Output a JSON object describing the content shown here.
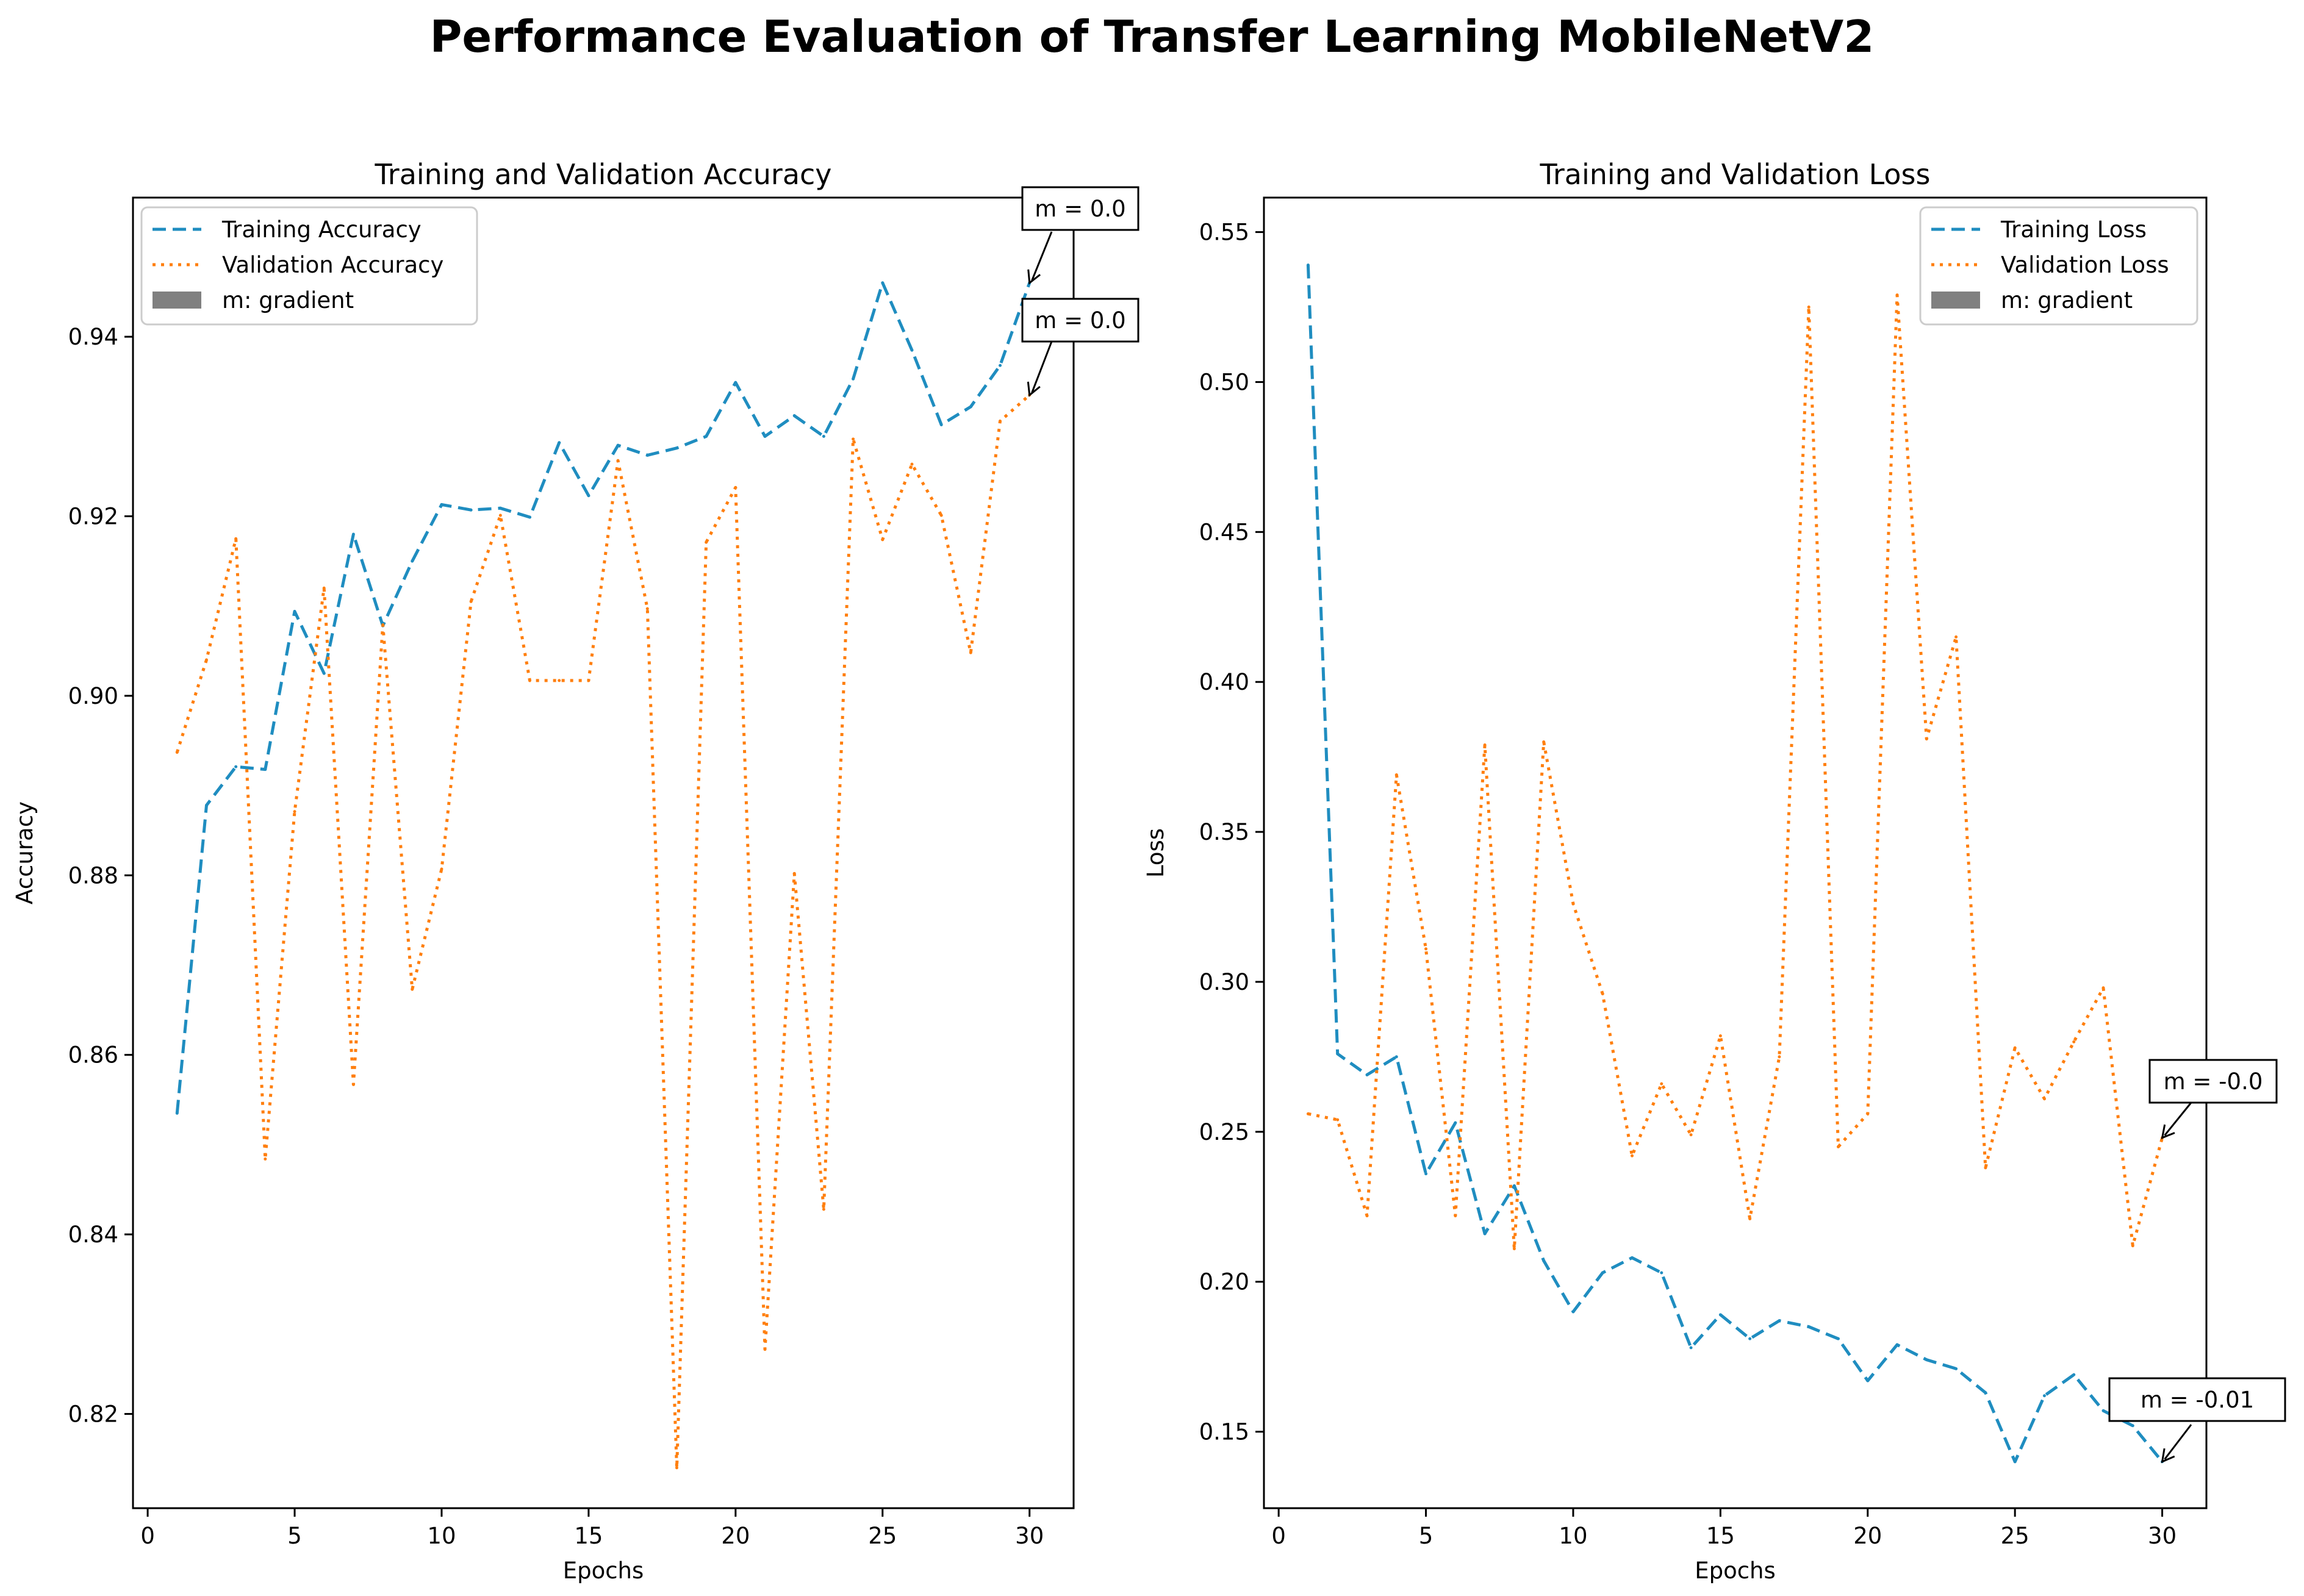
{
  "suptitle": "Performance Evaluation of Transfer Learning MobileNetV2",
  "colors": {
    "training": "#1f8dc0",
    "validation": "#ff7f0e",
    "gradient_patch": "#808080",
    "axes": "#000000"
  },
  "chart_data": [
    {
      "type": "line",
      "title": "Training and Validation Accuracy",
      "xlabel": "Epochs",
      "ylabel": "Accuracy",
      "xlim": [
        -0.5,
        31.5
      ],
      "ylim": [
        0.8095,
        0.9555
      ],
      "xticks": [
        0,
        5,
        10,
        15,
        20,
        25,
        30
      ],
      "xtick_labels": [
        "0",
        "5",
        "10",
        "15",
        "20",
        "25",
        "30"
      ],
      "yticks": [
        0.82,
        0.84,
        0.86,
        0.88,
        0.9,
        0.92,
        0.94
      ],
      "ytick_labels": [
        "0.82",
        "0.84",
        "0.86",
        "0.88",
        "0.90",
        "0.92",
        "0.94"
      ],
      "legend_position": "top-left",
      "legend": [
        "Training Accuracy",
        "Validation Accuracy",
        "m: gradient"
      ],
      "x": [
        1,
        2,
        3,
        4,
        5,
        6,
        7,
        8,
        9,
        10,
        11,
        12,
        13,
        14,
        15,
        16,
        17,
        18,
        19,
        20,
        21,
        22,
        23,
        24,
        25,
        26,
        27,
        28,
        29,
        30
      ],
      "series": [
        {
          "name": "Training Accuracy",
          "style": "dashed",
          "values": [
            0.8535,
            0.8878,
            0.8921,
            0.8918,
            0.9094,
            0.9025,
            0.918,
            0.9078,
            0.915,
            0.9213,
            0.9207,
            0.9209,
            0.9199,
            0.9282,
            0.9223,
            0.9279,
            0.9268,
            0.9276,
            0.9289,
            0.9349,
            0.9289,
            0.9312,
            0.9289,
            0.9353,
            0.946,
            0.9385,
            0.9302,
            0.9322,
            0.9368,
            0.946
          ]
        },
        {
          "name": "Validation Accuracy",
          "style": "dotted",
          "values": [
            0.8937,
            0.904,
            0.9175,
            0.8484,
            0.8871,
            0.912,
            0.8567,
            0.9079,
            0.8673,
            0.8807,
            0.9105,
            0.9201,
            0.9017,
            0.9017,
            0.9017,
            0.9262,
            0.9097,
            0.814,
            0.9171,
            0.9232,
            0.8272,
            0.8802,
            0.8428,
            0.9286,
            0.9174,
            0.9258,
            0.9201,
            0.9048,
            0.9306,
            0.9335
          ]
        }
      ],
      "annotations": [
        {
          "text": "m = 0.0",
          "series": 0,
          "x": 30
        },
        {
          "text": "m = 0.0",
          "series": 1,
          "x": 30
        }
      ]
    },
    {
      "type": "line",
      "title": "Training and Validation Loss",
      "xlabel": "Epochs",
      "ylabel": "Loss",
      "xlim": [
        -0.5,
        31.5
      ],
      "ylim": [
        0.1245,
        0.5615
      ],
      "xticks": [
        0,
        5,
        10,
        15,
        20,
        25,
        30
      ],
      "xtick_labels": [
        "0",
        "5",
        "10",
        "15",
        "20",
        "25",
        "30"
      ],
      "yticks": [
        0.15,
        0.2,
        0.25,
        0.3,
        0.35,
        0.4,
        0.45,
        0.5,
        0.55
      ],
      "ytick_labels": [
        "0.15",
        "0.20",
        "0.25",
        "0.30",
        "0.35",
        "0.40",
        "0.45",
        "0.50",
        "0.55"
      ],
      "legend_position": "top-right",
      "legend": [
        "Training Loss",
        "Validation Loss",
        "m: gradient"
      ],
      "x": [
        1,
        2,
        3,
        4,
        5,
        6,
        7,
        8,
        9,
        10,
        11,
        12,
        13,
        14,
        15,
        16,
        17,
        18,
        19,
        20,
        21,
        22,
        23,
        24,
        25,
        26,
        27,
        28,
        29,
        30
      ],
      "series": [
        {
          "name": "Training Loss",
          "style": "dashed",
          "values": [
            0.539,
            0.276,
            0.269,
            0.275,
            0.236,
            0.253,
            0.216,
            0.232,
            0.207,
            0.19,
            0.203,
            0.208,
            0.203,
            0.178,
            0.189,
            0.181,
            0.187,
            0.185,
            0.181,
            0.167,
            0.179,
            0.174,
            0.171,
            0.163,
            0.14,
            0.162,
            0.169,
            0.157,
            0.152,
            0.14
          ]
        },
        {
          "name": "Validation Loss",
          "style": "dotted",
          "values": [
            0.256,
            0.254,
            0.222,
            0.369,
            0.311,
            0.222,
            0.379,
            0.211,
            0.38,
            0.326,
            0.296,
            0.242,
            0.266,
            0.249,
            0.282,
            0.221,
            0.275,
            0.525,
            0.245,
            0.256,
            0.529,
            0.381,
            0.415,
            0.238,
            0.278,
            0.261,
            0.28,
            0.298,
            0.212,
            0.248
          ]
        }
      ],
      "annotations": [
        {
          "text": "m = -0.0",
          "series": 1,
          "x": 30
        },
        {
          "text": "m = -0.01",
          "series": 0,
          "x": 30
        }
      ]
    }
  ]
}
